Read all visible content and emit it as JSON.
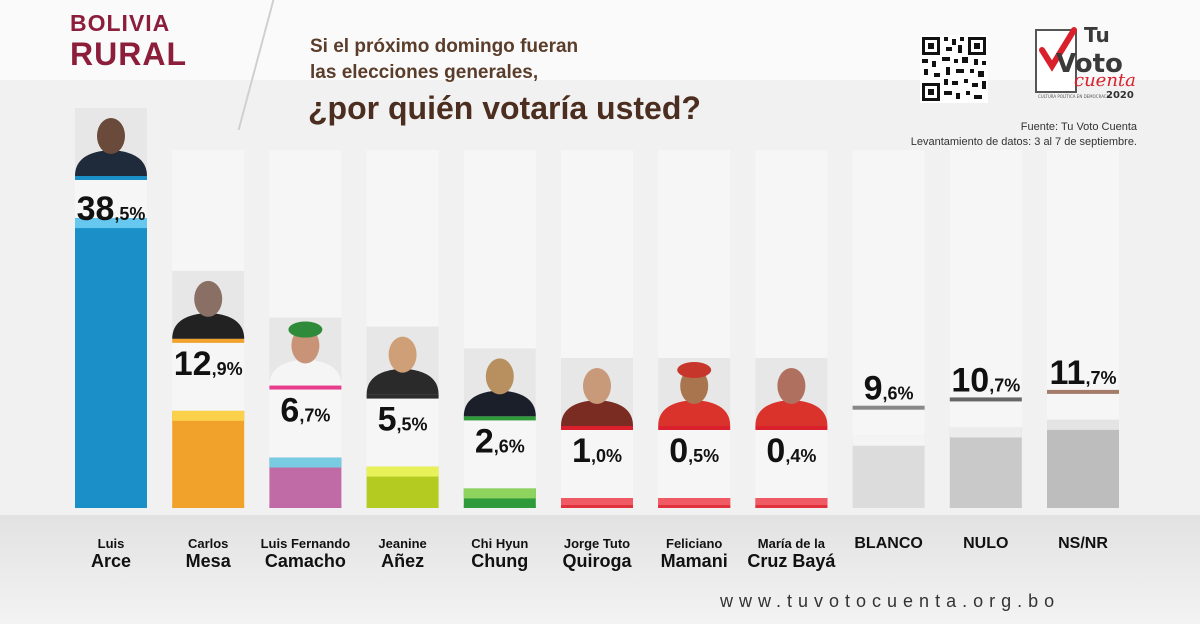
{
  "header": {
    "region_line1": "BOLIVIA",
    "region_line2": "RURAL",
    "question_line1": "Si el próximo domingo fueran",
    "question_line2": "las elecciones generales,",
    "question_line3": "¿por quién votaría usted?"
  },
  "logo": {
    "line1": "Tu",
    "line2": "Voto",
    "line3": "cuenta",
    "tagline": "CULTURA POLÍTICA EN DEMOCRACIA",
    "year": "2020"
  },
  "source": {
    "line1": "Fuente: Tu Voto Cuenta",
    "line2": "Levantamiento de datos: 3 al 7 de septiembre."
  },
  "footer": {
    "url": "www.tuvotocuenta.org.bo"
  },
  "chart_data": {
    "type": "bar",
    "categories": [
      "Luis Arce",
      "Carlos Mesa",
      "Luis Fernando Camacho",
      "Jeanine Áñez",
      "Chi Hyun Chung",
      "Jorge Tuto Quiroga",
      "Feliciano Mamani",
      "María de la Cruz Bayá",
      "BLANCO",
      "NULO",
      "NS/NR"
    ],
    "values": [
      38.5,
      12.9,
      6.7,
      5.5,
      2.6,
      1.0,
      0.5,
      0.4,
      9.6,
      10.7,
      11.7
    ],
    "value_labels": [
      [
        "38",
        ",5%"
      ],
      [
        "12",
        ",9%"
      ],
      [
        "6",
        ",7%"
      ],
      [
        "5",
        ",5%"
      ],
      [
        "2",
        ",6%"
      ],
      [
        "1",
        ",0%"
      ],
      [
        "0",
        ",5%"
      ],
      [
        "0",
        ",4%"
      ],
      [
        "9",
        ",6%"
      ],
      [
        "10",
        ",7%"
      ],
      [
        "11",
        ",7%"
      ]
    ],
    "name_labels": [
      [
        "Luis",
        "Arce"
      ],
      [
        "Carlos",
        "Mesa"
      ],
      [
        "Luis Fernando",
        "Camacho"
      ],
      [
        "Jeanine",
        "Añez"
      ],
      [
        "Chi Hyun",
        "Chung"
      ],
      [
        "Jorge Tuto",
        "Quiroga"
      ],
      [
        "Feliciano",
        "Mamani"
      ],
      [
        "María de la",
        "Cruz Bayá"
      ],
      [
        "BLANCO"
      ],
      [
        "NULO"
      ],
      [
        "NS/NR"
      ]
    ],
    "colors": [
      "#1a8fc8",
      "#f0a22b",
      "#c06aa6",
      "#b4cc22",
      "#2f9a3a",
      "#d9202c",
      "#d9202c",
      "#d9202c",
      "#dcdcdc",
      "#c9c9c9",
      "#bdbdbd"
    ],
    "top_colors": [
      "#66c8ee",
      "#fbd04a",
      "#78cbe0",
      "#e8f05a",
      "#8dd35e",
      "#f05a64",
      "#f05a64",
      "#f05a64",
      "#f4f4f4",
      "#ececec",
      "#e4e4e4"
    ],
    "photo_colors": [
      "#6a4a3a",
      "#8a7064",
      "#c99377",
      "#cfa078",
      "#b89060",
      "#c89a7a",
      "#a9754f",
      "#b07060",
      null,
      null,
      null
    ],
    "clothing_colors": [
      "#1f2a3a",
      "#222222",
      "#f5f5f5",
      "#2a2a2a",
      "#1b1f2a",
      "#7a2b22",
      "#d9332b",
      "#d9332b",
      null,
      null,
      null
    ],
    "hat_colors": [
      null,
      null,
      "#2f8a3a",
      null,
      null,
      null,
      "#c7362a",
      null,
      null,
      null,
      null
    ],
    "accent_colors": [
      "#1a8fc8",
      "#f0a22b",
      "#e83c8c",
      "#2c2c2c",
      "#2f9a3a",
      "#d9202c",
      "#d9202c",
      "#d9202c",
      "#888888",
      "#666666",
      "#a57c6a"
    ],
    "ylim": [
      0,
      40
    ]
  }
}
